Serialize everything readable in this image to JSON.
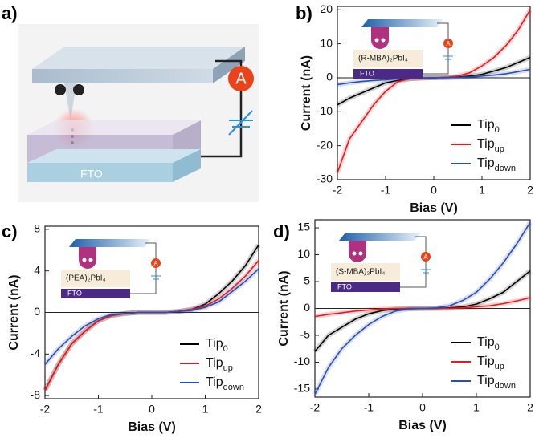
{
  "panel_a": {
    "label": "a)",
    "substrate": "FTO",
    "ammeter": "A"
  },
  "chart_data": [
    {
      "type": "line",
      "panel_label": "b)",
      "inset_label": "(R-MBA)₂PbI₄",
      "inset_substrate": "FTO",
      "inset_ammeter": "A",
      "xlabel": "Bias (V)",
      "ylabel": "Current (nA)",
      "x": [
        -2,
        -1.75,
        -1.5,
        -1.25,
        -1,
        -0.75,
        -0.5,
        -0.25,
        0,
        0.25,
        0.5,
        0.75,
        1,
        1.25,
        1.5,
        1.75,
        2
      ],
      "xlim": [
        -2,
        2
      ],
      "xticks": [
        -2,
        -1,
        0,
        1,
        2
      ],
      "ylim": [
        -30,
        21
      ],
      "yticks": [
        -30,
        -20,
        -10,
        0,
        10,
        20
      ],
      "legend": "lower right",
      "series": [
        {
          "name": "Tip",
          "sub": "0",
          "color": "#000000",
          "values": [
            -8,
            -6,
            -4.5,
            -3,
            -1.5,
            -0.8,
            -0.3,
            -0.1,
            0,
            0.1,
            0.2,
            0.5,
            1,
            2,
            3,
            4.5,
            6
          ]
        },
        {
          "name": "Tip",
          "sub": "up",
          "color": "#e8191e",
          "values": [
            -28,
            -18,
            -13,
            -8,
            -4,
            -1.2,
            -0.3,
            -0.1,
            0,
            0.1,
            0.5,
            1.5,
            3.5,
            6,
            9.5,
            14,
            20
          ]
        },
        {
          "name": "Tip",
          "sub": "down",
          "color": "#2a4fb0",
          "values": [
            -2,
            -1.5,
            -1.1,
            -0.8,
            -0.6,
            -0.3,
            -0.1,
            0,
            0,
            0,
            0.1,
            0.2,
            0.5,
            0.8,
            1.2,
            1.8,
            2.5
          ]
        }
      ]
    },
    {
      "type": "line",
      "panel_label": "c)",
      "inset_label": "(PEA)₂PbI₄",
      "inset_substrate": "FTO",
      "inset_ammeter": "A",
      "xlabel": "Bias (V)",
      "ylabel": "Current (nA)",
      "x": [
        -2,
        -1.75,
        -1.5,
        -1.25,
        -1,
        -0.75,
        -0.5,
        -0.25,
        0,
        0.25,
        0.5,
        0.75,
        1,
        1.25,
        1.5,
        1.75,
        2
      ],
      "xlim": [
        -2,
        2
      ],
      "xticks": [
        -2,
        -1,
        0,
        1,
        2
      ],
      "ylim": [
        -8.3,
        8.3
      ],
      "yticks": [
        -8,
        -4,
        0,
        4,
        8
      ],
      "legend": "lower right",
      "series": [
        {
          "name": "Tip",
          "sub": "0",
          "color": "#000000",
          "values": [
            -7.5,
            -5,
            -3,
            -1.8,
            -0.8,
            -0.3,
            -0.1,
            0,
            0,
            0,
            0.1,
            0.3,
            0.8,
            1.8,
            3,
            4.5,
            6.5
          ]
        },
        {
          "name": "Tip",
          "sub": "up",
          "color": "#e8191e",
          "values": [
            -7.5,
            -5,
            -3,
            -1.8,
            -0.8,
            -0.3,
            -0.1,
            0,
            0,
            0,
            0.1,
            0.3,
            0.6,
            1.3,
            2.3,
            3.5,
            5
          ]
        },
        {
          "name": "Tip",
          "sub": "down",
          "color": "#2a4fb0",
          "values": [
            -5,
            -3.5,
            -2.3,
            -1.3,
            -0.6,
            -0.2,
            -0.1,
            0,
            0,
            0,
            0.1,
            0.2,
            0.5,
            1,
            2,
            3,
            4.2
          ]
        }
      ]
    },
    {
      "type": "line",
      "panel_label": "d)",
      "inset_label": "(S-MBA)₂PbI₄",
      "inset_substrate": "FTO",
      "inset_ammeter": "A",
      "xlabel": "Bias (V)",
      "ylabel": "Current (nA)",
      "x": [
        -2,
        -1.75,
        -1.5,
        -1.25,
        -1,
        -0.75,
        -0.5,
        -0.25,
        0,
        0.25,
        0.5,
        0.75,
        1,
        1.25,
        1.5,
        1.75,
        2
      ],
      "xlim": [
        -2,
        2
      ],
      "xticks": [
        -2,
        -1,
        0,
        1,
        2
      ],
      "ylim": [
        -16.5,
        16.5
      ],
      "yticks": [
        -15,
        -10,
        -5,
        0,
        5,
        10,
        15
      ],
      "legend": "lower right",
      "series": [
        {
          "name": "Tip",
          "sub": "0",
          "color": "#000000",
          "values": [
            -8,
            -5,
            -3.5,
            -2,
            -1,
            -0.4,
            -0.1,
            0,
            0,
            0,
            0.1,
            0.3,
            0.8,
            1.8,
            3,
            5,
            7
          ]
        },
        {
          "name": "Tip",
          "sub": "up",
          "color": "#e8191e",
          "values": [
            -1.5,
            -1.1,
            -0.8,
            -0.5,
            -0.3,
            -0.1,
            0,
            0,
            0,
            0,
            0,
            0.1,
            0.3,
            0.5,
            0.9,
            1.4,
            2
          ]
        },
        {
          "name": "Tip",
          "sub": "down",
          "color": "#2a4fb0",
          "values": [
            -16,
            -11,
            -7.5,
            -5,
            -3,
            -1.5,
            -0.5,
            -0.1,
            0,
            0.1,
            0.5,
            1.5,
            3,
            5.5,
            8.5,
            12,
            16
          ]
        }
      ]
    }
  ]
}
